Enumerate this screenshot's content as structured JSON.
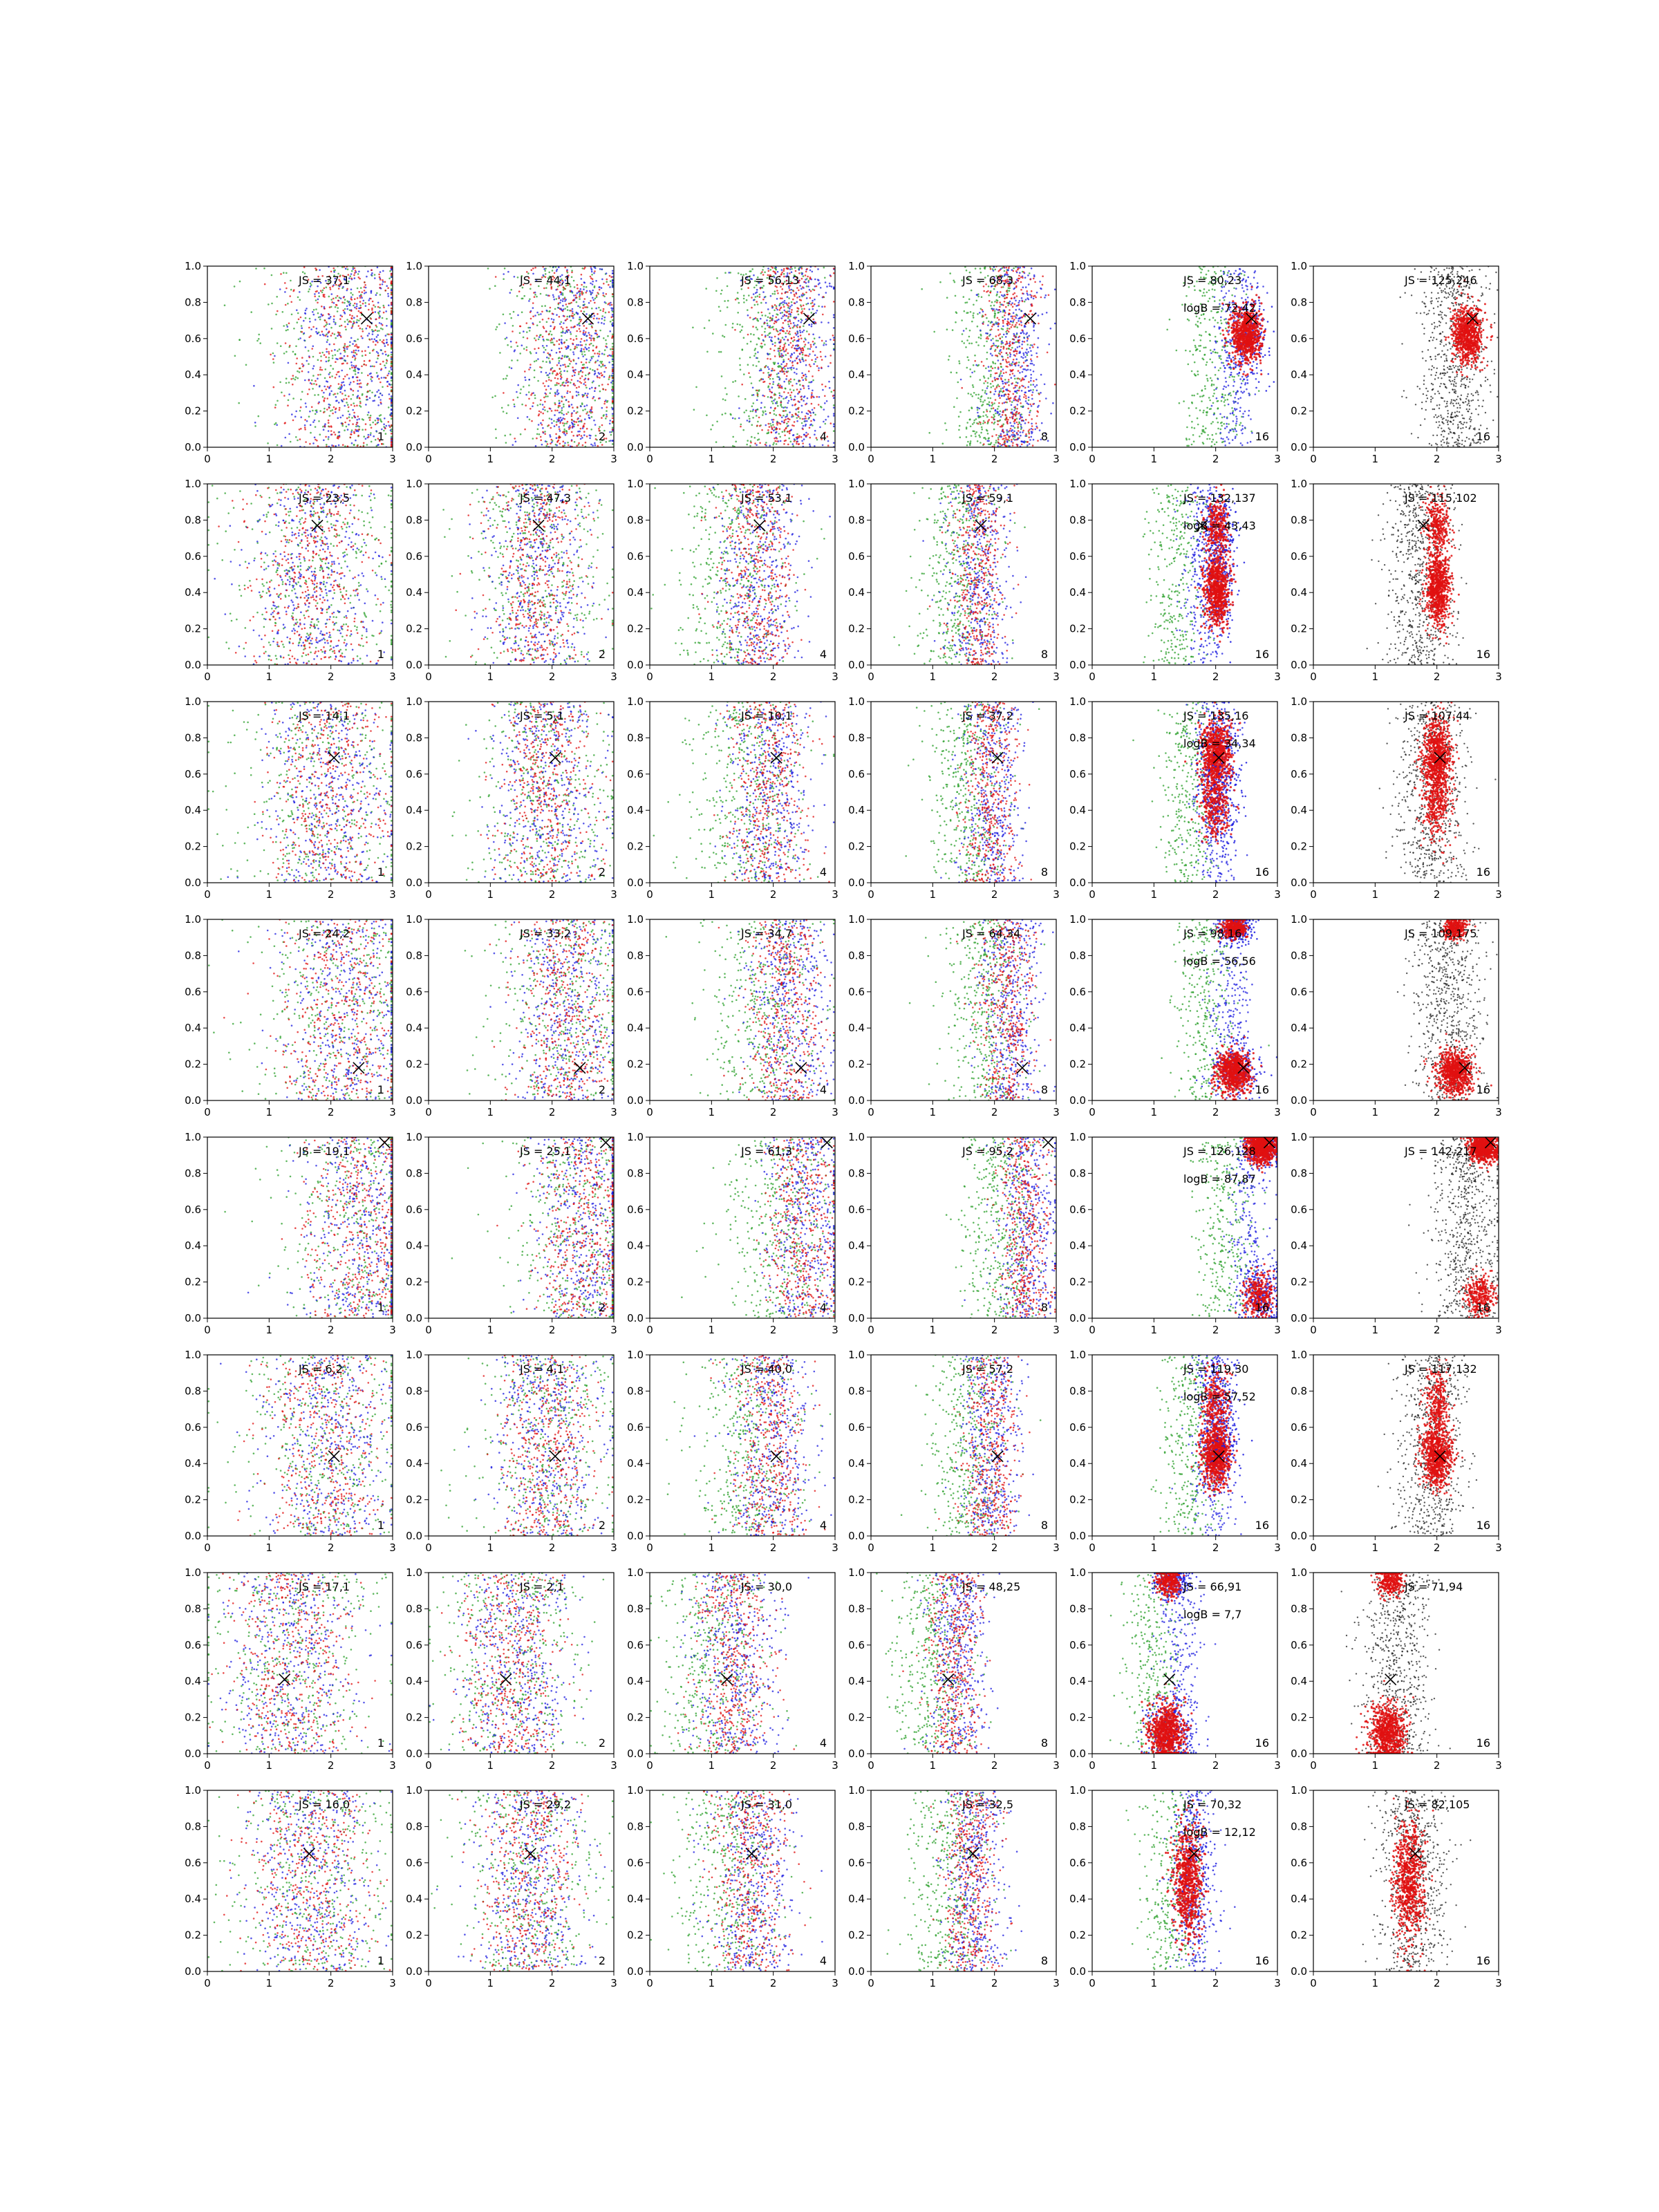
{
  "chart_data": {
    "type": "scatter",
    "layout": {
      "rows": 8,
      "cols": 6
    },
    "xlim": [
      0,
      3
    ],
    "ylim": [
      0,
      1
    ],
    "xticks": [
      0,
      1,
      2,
      3
    ],
    "yticks": [
      "0.0",
      "0.2",
      "0.4",
      "0.6",
      "0.8",
      "1.0"
    ],
    "grid": false,
    "series_colors": {
      "green": "#2ca02c",
      "blue": "#1f1fe0",
      "red": "#e01010",
      "black": "#222222"
    },
    "column_corner_labels": [
      "1",
      "2",
      "4",
      "8",
      "16",
      "16"
    ],
    "rows": [
      {
        "marker": [
          2.58,
          0.71
        ],
        "annotations": [
          [
            "JS = 37,1"
          ],
          [
            "JS = 44,1"
          ],
          [
            "JS = 56,13"
          ],
          [
            "JS = 68,3"
          ],
          [
            "JS = 80,23",
            "logB = 72,42"
          ],
          [
            "JS = 125,246"
          ]
        ],
        "clusters": [
          [
            2.5,
            0.62,
            0.12,
            0.08
          ]
        ]
      },
      {
        "marker": [
          1.78,
          0.77
        ],
        "annotations": [
          [
            "JS = 23,5"
          ],
          [
            "JS = 47,3"
          ],
          [
            "JS = 53,1"
          ],
          [
            "JS = 59,1"
          ],
          [
            "JS = 132,137",
            "logB = 43,43"
          ],
          [
            "JS = 115,102"
          ]
        ],
        "clusters": [
          [
            2.02,
            0.42,
            0.1,
            0.1
          ],
          [
            2.02,
            0.76,
            0.1,
            0.08
          ]
        ]
      },
      {
        "marker": [
          2.05,
          0.69
        ],
        "annotations": [
          [
            "JS = 14,1"
          ],
          [
            "JS = 5,1"
          ],
          [
            "JS = 10,1"
          ],
          [
            "JS = 37,2"
          ],
          [
            "JS = 135,16",
            "logB = 34,34"
          ],
          [
            "JS = 107,44"
          ]
        ],
        "clusters": [
          [
            2.0,
            0.7,
            0.12,
            0.1
          ],
          [
            2.0,
            0.42,
            0.12,
            0.1
          ]
        ]
      },
      {
        "marker": [
          2.45,
          0.18
        ],
        "annotations": [
          [
            "JS = 24,2"
          ],
          [
            "JS = 33,2"
          ],
          [
            "JS = 34,7"
          ],
          [
            "JS = 64,34"
          ],
          [
            "JS = 98,16",
            "logB = 56,56"
          ],
          [
            "JS = 109,175"
          ]
        ],
        "clusters": [
          [
            2.3,
            0.16,
            0.14,
            0.06
          ],
          [
            2.3,
            0.95,
            0.1,
            0.03
          ]
        ]
      },
      {
        "marker": [
          2.87,
          0.97
        ],
        "annotations": [
          [
            "JS = 19,1"
          ],
          [
            "JS = 25,1"
          ],
          [
            "JS = 61,3"
          ],
          [
            "JS = 95,2"
          ],
          [
            "JS = 126,128",
            "logB = 87,87"
          ],
          [
            "JS = 142,217"
          ]
        ],
        "clusters": [
          [
            2.75,
            0.94,
            0.12,
            0.04
          ],
          [
            2.7,
            0.12,
            0.12,
            0.06
          ]
        ]
      },
      {
        "marker": [
          2.05,
          0.44
        ],
        "annotations": [
          [
            "JS = 6,2"
          ],
          [
            "JS = 4,1"
          ],
          [
            "JS = 40,0"
          ],
          [
            "JS = 57,2"
          ],
          [
            "JS = 119,30",
            "logB = 57,52"
          ],
          [
            "JS = 117,132"
          ]
        ],
        "clusters": [
          [
            2.0,
            0.44,
            0.12,
            0.08
          ],
          [
            2.0,
            0.72,
            0.1,
            0.1
          ]
        ]
      },
      {
        "marker": [
          1.25,
          0.41
        ],
        "annotations": [
          [
            "JS = 17,1"
          ],
          [
            "JS = 2,1"
          ],
          [
            "JS = 30,0"
          ],
          [
            "JS = 48,25"
          ],
          [
            "JS = 66,91",
            "logB = 7,7"
          ],
          [
            "JS = 71,94"
          ]
        ],
        "clusters": [
          [
            1.2,
            0.12,
            0.14,
            0.08
          ],
          [
            1.25,
            0.95,
            0.1,
            0.04
          ]
        ]
      },
      {
        "marker": [
          1.65,
          0.65
        ],
        "annotations": [
          [
            "JS = 16,0"
          ],
          [
            "JS = 29,2"
          ],
          [
            "JS = 31,0"
          ],
          [
            "JS = 32,5"
          ],
          [
            "JS = 70,32",
            "logB = 12,12"
          ],
          [
            "JS = 82,105"
          ]
        ],
        "clusters": [
          [
            1.55,
            0.5,
            0.12,
            0.16
          ]
        ]
      }
    ]
  }
}
